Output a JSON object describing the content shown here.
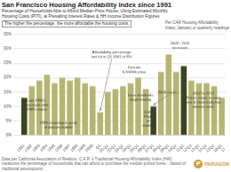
{
  "chart_data": {
    "type": "bar",
    "title": "San Francisco Housing Affordability Index since 1991",
    "subtitle": [
      "Percentage of Households Able to Afford Median Price House, Using Estimated Monthly",
      "Housing Costs (PITI), at Prevailing Interest Rates & HH Income Distribution Figures"
    ],
    "note": "Per CAR Housing Affordability\nIndex; January or quarterly readings",
    "tagline": "The higher the percentage, the more affordable the housing costs.",
    "categories": [
      "1991",
      "1992",
      "1993",
      "1994",
      "1995",
      "1996",
      "1997",
      "1998",
      "1999",
      "2000",
      "Q1\n01",
      "Q1\n02",
      "Q1\n03",
      "Q1\n04",
      "Q1\n05",
      "Q1\n06",
      "Q1\n07",
      "Q1\n08",
      "Q1\n09",
      "Q1\n10",
      "Q1\n11",
      "Q1\n12",
      "Q1\n13",
      "Q1\n14",
      "Q1\n15",
      "Q1\n16",
      "Q1\n17"
    ],
    "values": [
      13,
      17,
      19,
      21,
      18,
      20,
      19,
      20,
      18,
      17,
      8,
      15,
      16,
      17,
      18,
      20,
      16,
      10,
      22,
      28,
      22,
      24,
      19,
      18,
      18,
      17,
      13
    ],
    "colors": [
      "#3d4520",
      "#b5b572",
      "#b5b572",
      "#b5b572",
      "#b5b572",
      "#b5b572",
      "#b5b572",
      "#b5b572",
      "#b5b572",
      "#b5b572",
      "#b5b572",
      "#b5b572",
      "#b5b572",
      "#b5b572",
      "#b5b572",
      "#b5b572",
      "#b5b572",
      "#3d4520",
      "#b5b572",
      "#b5b572",
      "#b5b572",
      "#3d4520",
      "#b5b572",
      "#b5b572",
      "#b5b572",
      "#b5b572",
      "#b5b572"
    ],
    "ylim": [
      0,
      35
    ],
    "yticks": [
      {
        "value": 0,
        "label": "0%"
      },
      {
        "value": 5,
        "label": "5%"
      },
      {
        "value": 10,
        "label": "10%"
      },
      {
        "value": 15,
        "label": "15%"
      },
      {
        "value": 20,
        "label": "20%"
      },
      {
        "value": 25,
        "label": "25%"
      },
      {
        "value": 30,
        "label": "30%"
      },
      {
        "value": 35,
        "label": "35%"
      }
    ],
    "grid": true,
    "annotations": [
      "Late 1990's\nrecession after\n1989's boom",
      "1995 economy to peak\nof dotcom bubble",
      "Affordability percentage\nlow hit in Q1 2001 at 8%",
      "Dotcom\n& bubble prop.",
      "Loan standards\ndegenerating",
      "2008 crash ↓",
      "2007\nPeak\nof\nmarket",
      "2009 - 2011\nrecession",
      "2012 to 2017\nPrices surge, income\nrise & historically low\ninterest rates"
    ],
    "footer": "Data per California Association of Realtors. C.A.R.'s Traditional Housing Affordability Index (HAI) measures the percentage of households that can afford to purchase the median priced home... based of traditional assumptions.",
    "logo_mark": "P",
    "logo": "PARAGON",
    "logo_color": "#c8a035"
  }
}
